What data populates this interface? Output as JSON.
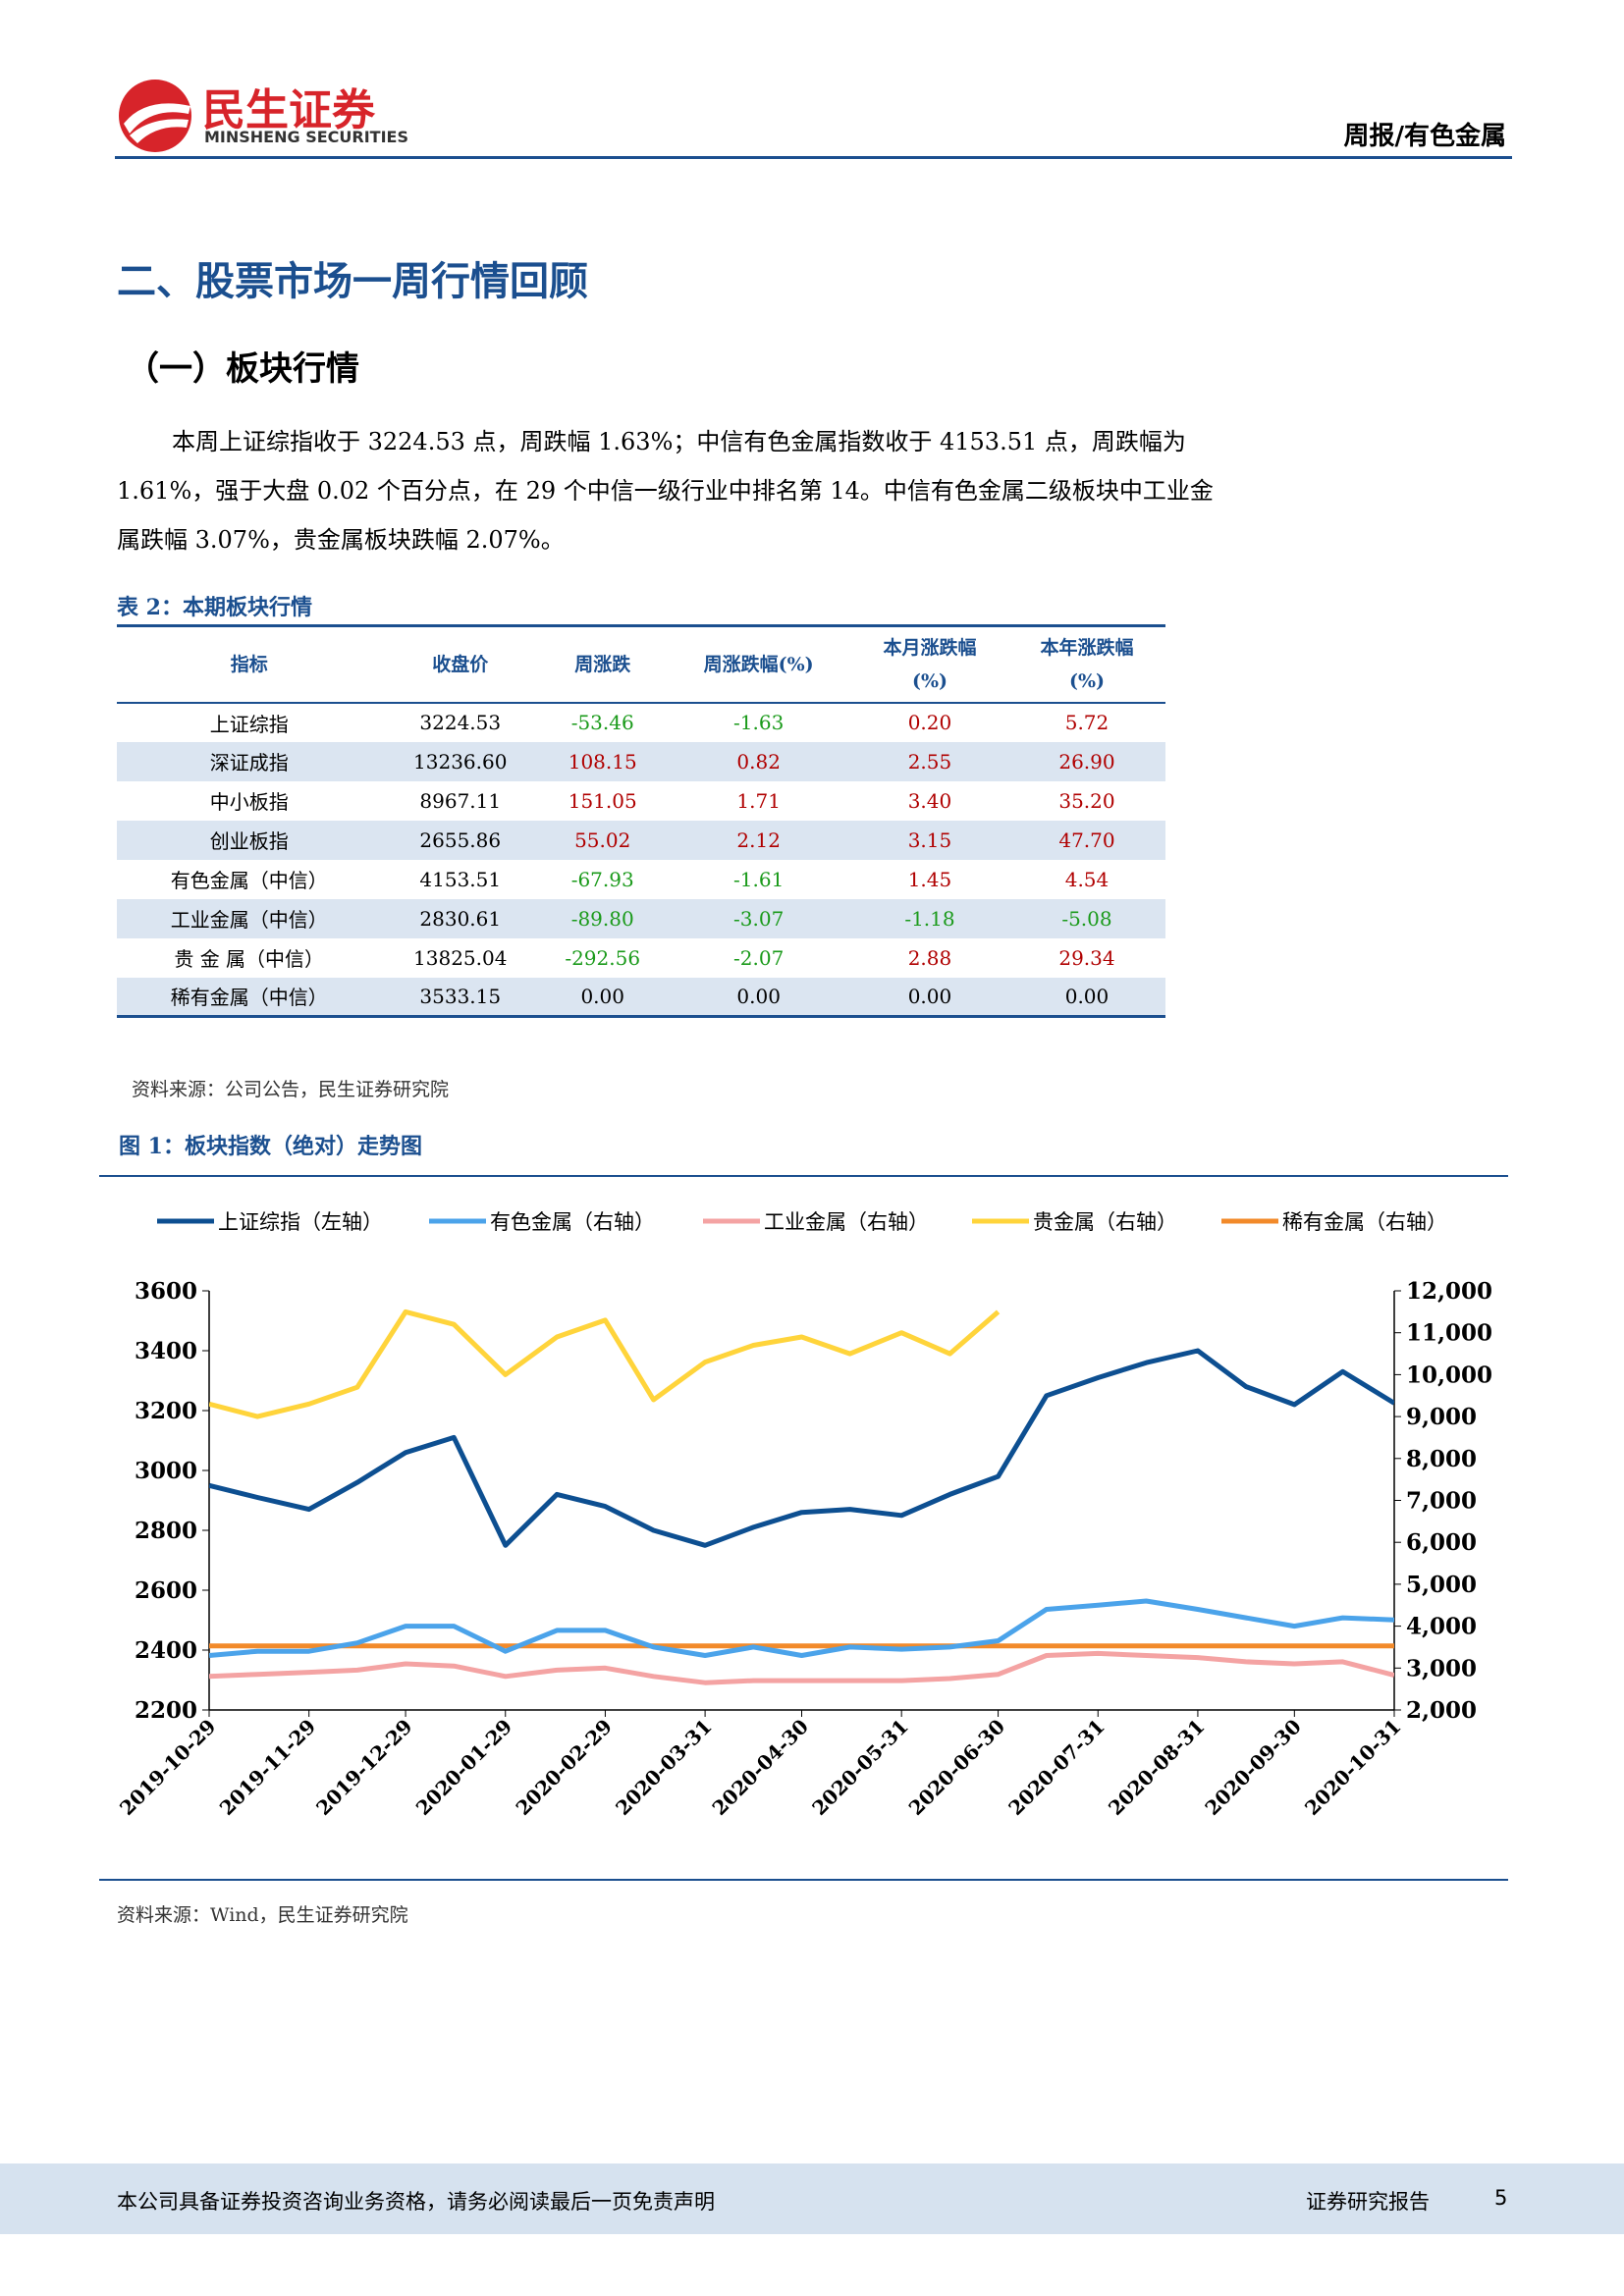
{
  "header": {
    "logo_name": "民生证券",
    "logo_english": "MINSHENG SECURITIES",
    "report_tag": "周报/有色金属"
  },
  "section_title": "二、股票市场一周行情回顾",
  "subsection_title": "（一）板块行情",
  "paragraph": "本周上证综指收于 3224.53 点，周跌幅 1.63%；中信有色金属指数收于 4153.51 点，周跌幅为 1.61%，强于大盘 0.02 个百分点，在 29 个中信一级行业中排名第 14。中信有色金属二级板块中工业金属跌幅 3.07%，贵金属板块跌幅 2.07%。",
  "table": {
    "caption": "表 2：本期板块行情",
    "header": [
      [
        "指标"
      ],
      [
        "收盘价"
      ],
      [
        "周涨跌"
      ],
      [
        "周涨跌幅(%)"
      ],
      [
        "本月涨跌幅",
        "(%)"
      ],
      [
        "本年涨跌幅",
        "(%)"
      ]
    ],
    "rows": [
      [
        "上证综指",
        "3224.53",
        "-53.46",
        "-1.63",
        "0.20",
        "5.72"
      ],
      [
        "深证成指",
        "13236.60",
        "108.15",
        "0.82",
        "2.55",
        "26.90"
      ],
      [
        "中小板指",
        "8967.11",
        "151.05",
        "1.71",
        "3.40",
        "35.20"
      ],
      [
        "创业板指",
        "2655.86",
        "55.02",
        "2.12",
        "3.15",
        "47.70"
      ],
      [
        "有色金属（中信）",
        "4153.51",
        "-67.93",
        "-1.61",
        "1.45",
        "4.54"
      ],
      [
        "工业金属（中信）",
        "2830.61",
        "-89.80",
        "-3.07",
        "-1.18",
        "-5.08"
      ],
      [
        "贵 金 属（中信）",
        "13825.04",
        "-292.56",
        "-2.07",
        "2.88",
        "29.34"
      ],
      [
        "稀有金属（中信）",
        "3533.15",
        "0.00",
        "0.00",
        "0.00",
        "0.00"
      ]
    ],
    "source": "资料来源：公司公告，民生证券研究院"
  },
  "figure": {
    "caption": "图 1：板块指数（绝对）走势图",
    "source": "资料来源：Wind，民生证券研究院"
  },
  "chart_data": {
    "type": "line",
    "x": [
      "2019-10-29",
      "2019-11-13",
      "2019-11-29",
      "2019-12-14",
      "2019-12-29",
      "2020-01-13",
      "2020-01-29",
      "2020-02-14",
      "2020-02-29",
      "2020-03-15",
      "2020-03-31",
      "2020-04-15",
      "2020-04-30",
      "2020-05-15",
      "2020-05-31",
      "2020-06-15",
      "2020-06-30",
      "2020-07-15",
      "2020-07-31",
      "2020-08-15",
      "2020-08-31",
      "2020-09-15",
      "2020-09-30",
      "2020-10-15",
      "2020-10-31"
    ],
    "xlim": [
      "2019-10-29",
      "2020-10-31"
    ],
    "xticks": [
      "2019-10-29",
      "2019-11-29",
      "2019-12-29",
      "2020-01-29",
      "2020-02-29",
      "2020-03-31",
      "2020-04-30",
      "2020-05-31",
      "2020-06-30",
      "2020-07-31",
      "2020-08-31",
      "2020-09-30",
      "2020-10-31"
    ],
    "ylim": [
      2200,
      3600
    ],
    "yticks": [
      2200,
      2400,
      2600,
      2800,
      3000,
      3200,
      3400,
      3600
    ],
    "y2lim": [
      2000,
      12000
    ],
    "y2ticks": [
      {
        "value": 2000,
        "label": "2,000"
      },
      {
        "value": 3000,
        "label": "3,000"
      },
      {
        "value": 4000,
        "label": "4,000"
      },
      {
        "value": 5000,
        "label": "5,000"
      },
      {
        "value": 6000,
        "label": "6,000"
      },
      {
        "value": 7000,
        "label": "7,000"
      },
      {
        "value": 8000,
        "label": "8,000"
      },
      {
        "value": 9000,
        "label": "9,000"
      },
      {
        "value": 10000,
        "label": "10,000"
      },
      {
        "value": 11000,
        "label": "11,000"
      },
      {
        "value": 12000,
        "label": "12,000"
      }
    ],
    "series": [
      {
        "name": "上证综指（左轴）",
        "color": "#0d4f91",
        "values": [
          2950,
          2910,
          2870,
          2960,
          3060,
          3110,
          2750,
          2920,
          2880,
          2800,
          2750,
          2810,
          2860,
          2870,
          2850,
          2920,
          2980,
          3250,
          3310,
          3360,
          3400,
          3280,
          3220,
          3330,
          3225
        ]
      },
      {
        "name": "有色金属（右轴）",
        "color": "#4ba3ea",
        "axis": "y2",
        "values": [
          3300,
          3400,
          3400,
          3600,
          4000,
          4000,
          3400,
          3900,
          3900,
          3500,
          3300,
          3500,
          3300,
          3500,
          3450,
          3500,
          3650,
          4400,
          4500,
          4600,
          4400,
          4200,
          4000,
          4200,
          4150
        ]
      },
      {
        "name": "工业金属（右轴）",
        "color": "#f4a3a3",
        "axis": "y2",
        "values": [
          2800,
          2850,
          2900,
          2950,
          3100,
          3050,
          2800,
          2950,
          3000,
          2800,
          2650,
          2700,
          2700,
          2700,
          2700,
          2750,
          2850,
          3300,
          3350,
          3300,
          3250,
          3150,
          3100,
          3150,
          2830
        ]
      },
      {
        "name": "贵金属（右轴）",
        "color": "#ffd43b",
        "axis": "y2",
        "values": [
          9300,
          9000,
          9300,
          9700,
          11500,
          11200,
          10000,
          10900,
          11300,
          9400,
          10300,
          10700,
          10900,
          10500,
          11000,
          10500,
          11500,
          null,
          null,
          null,
          null,
          null,
          null,
          null,
          null
        ]
      },
      {
        "name": "稀有金属（右轴）",
        "color": "#f28a2a",
        "axis": "y2",
        "values": [
          3530,
          3530,
          3530,
          3530,
          3530,
          3530,
          3530,
          3530,
          3530,
          3530,
          3530,
          3530,
          3530,
          3530,
          3530,
          3530,
          3530,
          3530,
          3530,
          3530,
          3530,
          3530,
          3530,
          3530,
          3530
        ]
      }
    ]
  },
  "footer": {
    "disclaimer": "本公司具备证券投资咨询业务资格，请务必阅读最后一页免责声明",
    "report_type": "证券研究报告",
    "page": "5"
  }
}
